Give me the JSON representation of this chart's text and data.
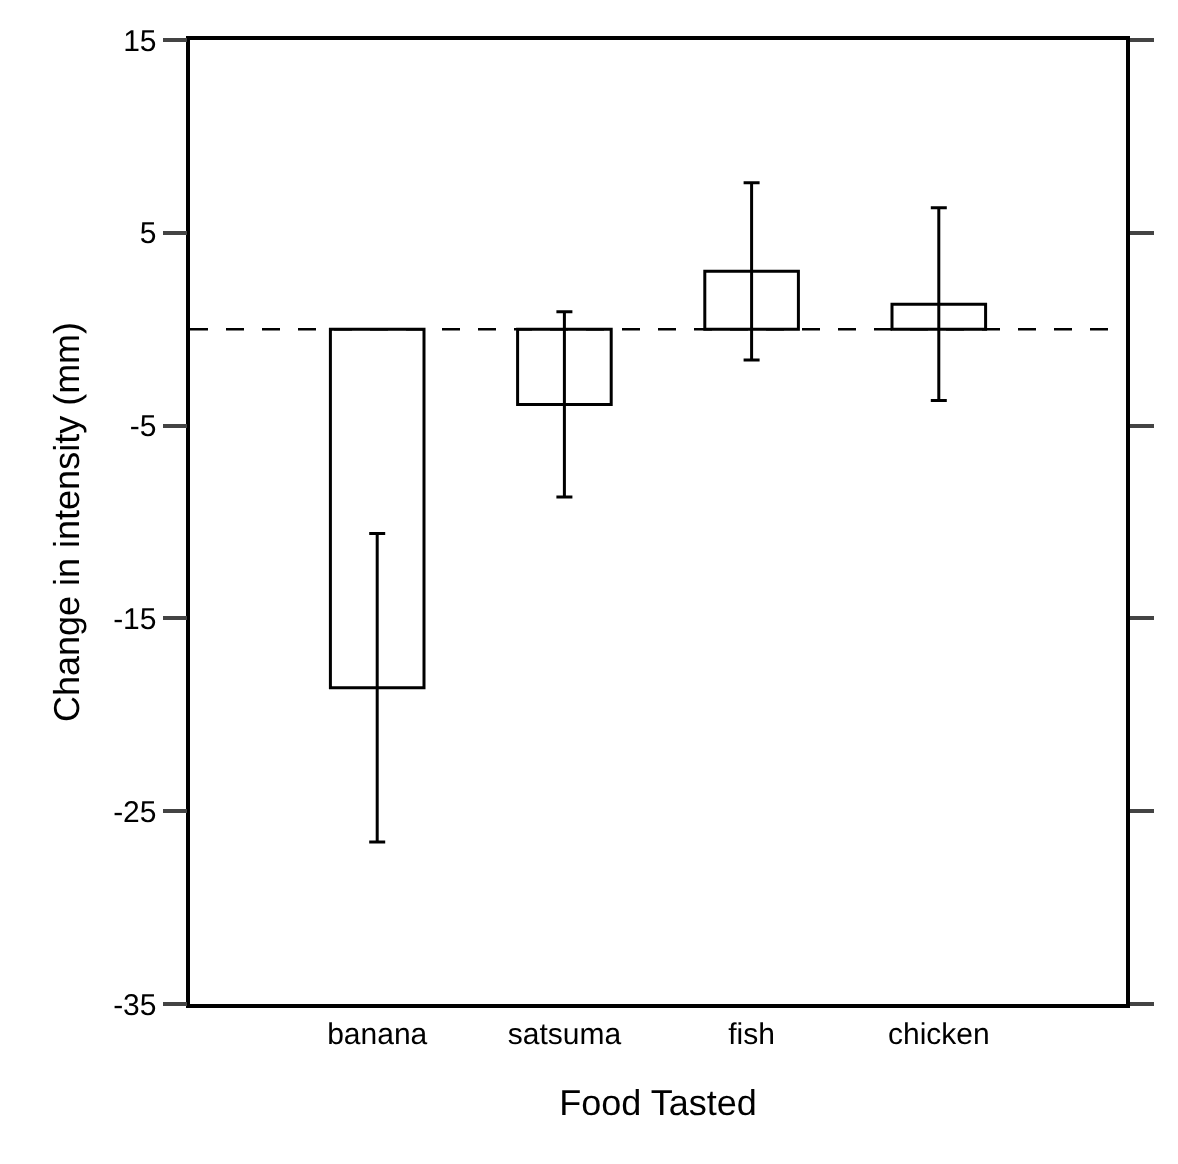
{
  "chart_data": {
    "type": "bar",
    "xlabel": "Food Tasted",
    "ylabel": "Change in intensity (mm)",
    "categories": [
      "banana",
      "satsuma",
      "fish",
      "chicken"
    ],
    "values": [
      -18.6,
      -3.9,
      3.0,
      1.3
    ],
    "errors": [
      8.0,
      4.8,
      4.6,
      5.0
    ],
    "color": "#ffffff",
    "ylim": [
      -35,
      15
    ],
    "yticks": [
      -35,
      -25,
      -15,
      -5,
      5,
      15
    ],
    "ref_lines": [
      {
        "axis": "y",
        "value": 0,
        "line_style": "dashed"
      }
    ],
    "legend": false
  }
}
